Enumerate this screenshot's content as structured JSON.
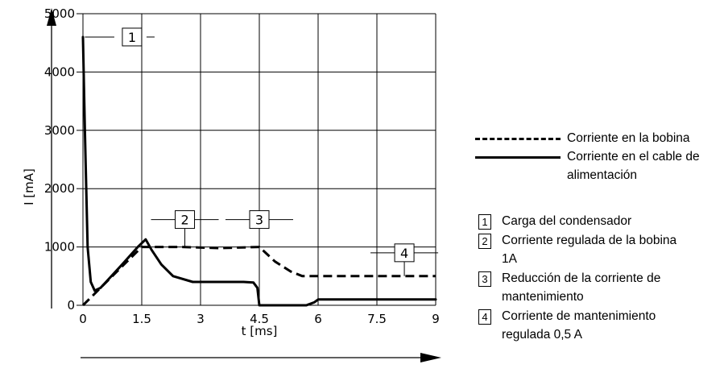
{
  "chart_data": {
    "type": "line",
    "xlabel": "t [ms]",
    "ylabel": "I [mA]",
    "xlim": [
      0,
      9
    ],
    "ylim": [
      0,
      5000
    ],
    "x_ticks": [
      "0",
      "1.5",
      "3",
      "4.5",
      "6",
      "7.5",
      "9"
    ],
    "y_ticks": [
      "0",
      "1000",
      "2000",
      "3000",
      "4000",
      "5000"
    ],
    "grid": true,
    "legend_position": "right",
    "series": [
      {
        "name": "Corriente en la bobina",
        "style": "dashed",
        "color": "#000000",
        "points": [
          [
            0,
            0
          ],
          [
            1.5,
            1000
          ],
          [
            2.5,
            1000
          ],
          [
            3.5,
            980
          ],
          [
            4.5,
            1000
          ],
          [
            4.9,
            750
          ],
          [
            5.3,
            580
          ],
          [
            5.6,
            500
          ],
          [
            9,
            500
          ]
        ]
      },
      {
        "name": "Corriente en el cable de alimentación",
        "style": "solid",
        "color": "#000000",
        "points": [
          [
            0,
            4600
          ],
          [
            0.05,
            3000
          ],
          [
            0.12,
            1000
          ],
          [
            0.2,
            400
          ],
          [
            0.3,
            250
          ],
          [
            0.45,
            300
          ],
          [
            1.0,
            700
          ],
          [
            1.4,
            1000
          ],
          [
            1.6,
            1130
          ],
          [
            1.75,
            950
          ],
          [
            2.0,
            700
          ],
          [
            2.3,
            500
          ],
          [
            2.8,
            400
          ],
          [
            3.5,
            400
          ],
          [
            4.1,
            400
          ],
          [
            4.35,
            390
          ],
          [
            4.45,
            300
          ],
          [
            4.5,
            0
          ],
          [
            5.7,
            0
          ],
          [
            5.9,
            50
          ],
          [
            6.0,
            100
          ],
          [
            9,
            100
          ]
        ]
      }
    ],
    "callouts": [
      {
        "number": "1",
        "x": 0.05,
        "y": 4600,
        "box_x": 0.8,
        "box_y": 4600
      },
      {
        "number": "2",
        "x": 2.6,
        "y": 1000,
        "box_x": 2.6,
        "box_y": 1470
      },
      {
        "number": "3",
        "x": 4.5,
        "y": 1000,
        "box_x": 4.5,
        "box_y": 1470
      },
      {
        "number": "4",
        "x": 8.2,
        "y": 500,
        "box_x": 8.2,
        "box_y": 900
      }
    ]
  },
  "legend": {
    "coil": "Corriente en la bobina",
    "supply_line1": "Corriente en el cable de",
    "supply_line2": "alimentación"
  },
  "notes": [
    {
      "number": "1",
      "lines": [
        "Carga del condensador"
      ]
    },
    {
      "number": "2",
      "lines": [
        "Corriente regulada de la bobina",
        "1A"
      ]
    },
    {
      "number": "3",
      "lines": [
        "Reducción de la corriente de",
        "mantenimiento"
      ]
    },
    {
      "number": "4",
      "lines": [
        "Corriente de mantenimiento",
        "regulada 0,5 A"
      ]
    }
  ]
}
